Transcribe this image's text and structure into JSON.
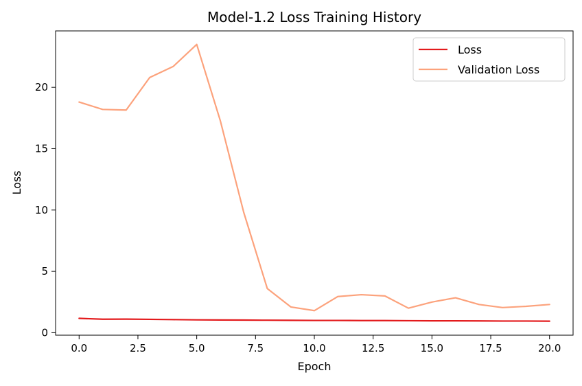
{
  "chart_data": {
    "type": "line",
    "title": "Model-1.2 Loss Training History",
    "xlabel": "Epoch",
    "ylabel": "Loss",
    "xlim": [
      -1,
      21
    ],
    "ylim": [
      -0.2,
      24.6
    ],
    "x_ticks": [
      0.0,
      2.5,
      5.0,
      7.5,
      10.0,
      12.5,
      15.0,
      17.5,
      20.0
    ],
    "x_tick_labels": [
      "0.0",
      "2.5",
      "5.0",
      "7.5",
      "10.0",
      "12.5",
      "15.0",
      "17.5",
      "20.0"
    ],
    "y_ticks": [
      0,
      5,
      10,
      15,
      20
    ],
    "y_tick_labels": [
      "0",
      "5",
      "10",
      "15",
      "20"
    ],
    "grid": false,
    "legend_position": "top-right",
    "x": [
      0,
      1,
      2,
      3,
      4,
      5,
      6,
      7,
      8,
      9,
      10,
      11,
      12,
      13,
      14,
      15,
      16,
      17,
      18,
      19,
      20
    ],
    "series": [
      {
        "name": "Loss",
        "color": "#e31a1c",
        "values": [
          1.17,
          1.1,
          1.11,
          1.09,
          1.07,
          1.05,
          1.04,
          1.03,
          1.02,
          1.01,
          1.0,
          1.0,
          0.99,
          0.99,
          0.98,
          0.97,
          0.97,
          0.96,
          0.95,
          0.95,
          0.94
        ]
      },
      {
        "name": "Validation Loss",
        "color": "#fca27c",
        "values": [
          18.8,
          18.2,
          18.15,
          20.8,
          21.7,
          23.5,
          17.3,
          9.8,
          3.6,
          2.1,
          1.8,
          2.95,
          3.1,
          3.0,
          2.0,
          2.5,
          2.85,
          2.3,
          2.05,
          2.15,
          2.3
        ]
      }
    ]
  }
}
